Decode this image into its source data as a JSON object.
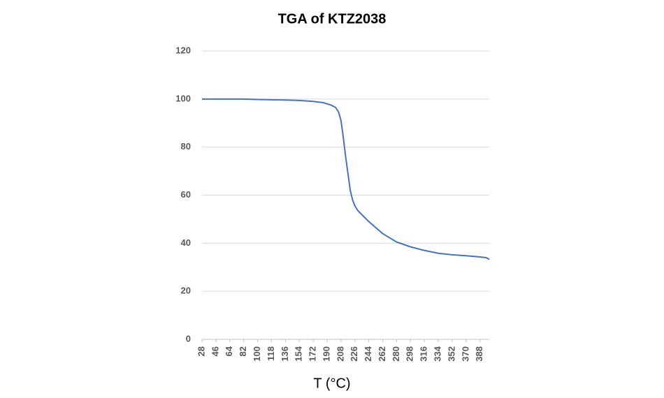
{
  "chart_data": {
    "type": "line",
    "title": "TGA of KTZ2038",
    "x_label": "T (°C)",
    "x": [
      28,
      82,
      100,
      136,
      154,
      172,
      185,
      195,
      201,
      205,
      208,
      211,
      214,
      217,
      220,
      223,
      226,
      230,
      244,
      262,
      280,
      298,
      316,
      334,
      352,
      370,
      388,
      396,
      400
    ],
    "series": [
      {
        "name": "TGA",
        "color": "#4472c4",
        "values": [
          100,
          100,
          99.8,
          99.6,
          99.4,
          99.0,
          98.5,
          97.5,
          96.5,
          94.5,
          91,
          84,
          76,
          69,
          62,
          58,
          55.5,
          53.5,
          49,
          44,
          40.5,
          38.5,
          37,
          35.8,
          35.2,
          34.8,
          34.3,
          34,
          33.3
        ]
      }
    ],
    "xlim": [
      28,
      400
    ],
    "xticks": [
      28,
      46,
      64,
      82,
      100,
      118,
      136,
      154,
      172,
      190,
      208,
      226,
      244,
      262,
      280,
      298,
      316,
      334,
      352,
      370,
      388
    ],
    "ylim": [
      0,
      120
    ],
    "yticks": [
      0,
      20,
      40,
      60,
      80,
      100,
      120
    ],
    "grid": true
  }
}
